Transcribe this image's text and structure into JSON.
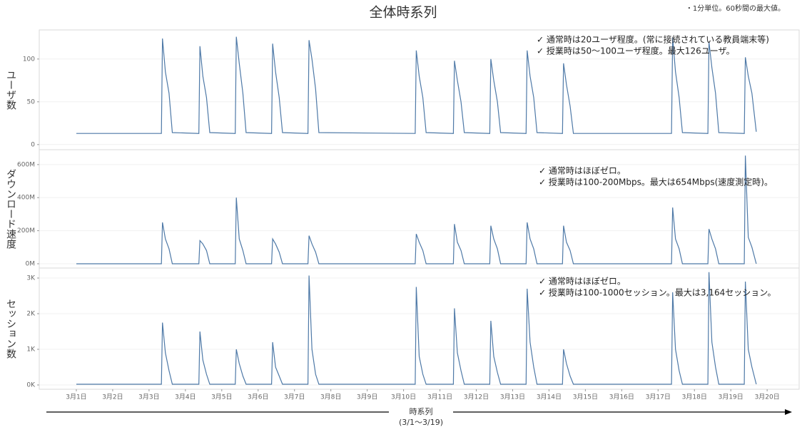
{
  "chart_data": [
    {
      "type": "line",
      "title": "全体時系列",
      "note": "・1分単位。60秒間の最大値。",
      "ylabel": "ユーザ数",
      "color": "#4e79a7",
      "annotations": [
        "✓ 通常時は20ユーザ程度。(常に接続されている教員端末等)",
        "✓ 授業時は50～100ユーザ程度。最大126ユーザ。"
      ],
      "xlim": [
        -0.02,
        20.88
      ],
      "ylim": [
        -6,
        134
      ],
      "yticks": [
        0,
        50,
        100
      ],
      "x": [
        1.0,
        3.34,
        3.37,
        3.45,
        3.55,
        3.64,
        4.37,
        4.4,
        4.48,
        4.58,
        4.67,
        5.37,
        5.4,
        5.48,
        5.58,
        5.67,
        6.37,
        6.4,
        6.48,
        6.58,
        6.67,
        7.37,
        7.4,
        7.48,
        7.58,
        7.67,
        10.32,
        10.35,
        10.43,
        10.53,
        10.62,
        11.37,
        11.4,
        11.48,
        11.58,
        11.67,
        12.37,
        12.4,
        12.48,
        12.58,
        12.67,
        13.37,
        13.4,
        13.48,
        13.58,
        13.67,
        14.37,
        14.4,
        14.48,
        14.58,
        14.67,
        17.37,
        17.4,
        17.48,
        17.58,
        17.67,
        18.37,
        18.4,
        18.48,
        18.58,
        18.67,
        19.37,
        19.4,
        19.48,
        19.58,
        19.7
      ],
      "values": [
        13,
        13,
        124,
        85,
        60,
        14,
        13,
        115,
        80,
        55,
        14,
        13,
        126,
        95,
        60,
        14,
        13,
        118,
        85,
        55,
        14,
        13,
        122,
        100,
        65,
        14,
        13,
        110,
        80,
        55,
        14,
        13,
        98,
        75,
        50,
        14,
        13,
        100,
        75,
        50,
        14,
        13,
        110,
        80,
        55,
        14,
        13,
        95,
        70,
        45,
        13,
        13,
        125,
        85,
        55,
        14,
        13,
        120,
        90,
        60,
        14,
        13,
        102,
        80,
        60,
        15
      ]
    },
    {
      "type": "line",
      "ylabel": "ダウンロード速度",
      "color": "#4e79a7",
      "annotations": [
        "✓ 通常時はほぼゼロ。",
        "✓ 授業時は100-200Mbps。最大は654Mbps(速度測定時)。"
      ],
      "xlim": [
        -0.02,
        20.88
      ],
      "ylim": [
        -26000000,
        690000000
      ],
      "yticks": [
        {
          "value": 0,
          "label": "0M"
        },
        {
          "value": 200000000,
          "label": "200M"
        },
        {
          "value": 400000000,
          "label": "400M"
        },
        {
          "value": 600000000,
          "label": "600M"
        }
      ],
      "x": [
        1.0,
        3.34,
        3.37,
        3.45,
        3.55,
        3.64,
        4.37,
        4.4,
        4.48,
        4.58,
        4.67,
        5.37,
        5.4,
        5.48,
        5.58,
        5.67,
        6.37,
        6.4,
        6.48,
        6.58,
        6.67,
        7.37,
        7.4,
        7.48,
        7.58,
        7.67,
        10.32,
        10.35,
        10.43,
        10.53,
        10.62,
        11.37,
        11.4,
        11.48,
        11.58,
        11.67,
        12.37,
        12.4,
        12.48,
        12.58,
        12.67,
        13.37,
        13.4,
        13.48,
        13.58,
        13.67,
        14.37,
        14.4,
        14.48,
        14.58,
        14.67,
        17.37,
        17.4,
        17.48,
        17.58,
        17.67,
        18.37,
        18.4,
        18.48,
        18.58,
        18.67,
        19.37,
        19.4,
        19.48,
        19.58,
        19.7
      ],
      "values": [
        0,
        0,
        250000000,
        150000000,
        90000000,
        0,
        0,
        140000000,
        120000000,
        80000000,
        0,
        0,
        400000000,
        150000000,
        80000000,
        0,
        0,
        150000000,
        120000000,
        70000000,
        0,
        0,
        170000000,
        120000000,
        70000000,
        0,
        0,
        180000000,
        130000000,
        80000000,
        0,
        0,
        240000000,
        130000000,
        80000000,
        0,
        0,
        230000000,
        150000000,
        90000000,
        0,
        0,
        250000000,
        150000000,
        90000000,
        0,
        0,
        230000000,
        130000000,
        80000000,
        0,
        0,
        340000000,
        150000000,
        90000000,
        0,
        0,
        210000000,
        150000000,
        90000000,
        0,
        0,
        654000000,
        160000000,
        100000000,
        0
      ]
    },
    {
      "type": "line",
      "ylabel": "セッション数",
      "color": "#4e79a7",
      "annotations": [
        "✓ 通常時はほぼゼロ。",
        "✓ 授業時は100-1000セッション。最大は3,164セッション。"
      ],
      "xlabel": "時系列",
      "xlabel_sub": "(3/1～3/19)",
      "xlim": [
        -0.02,
        20.88
      ],
      "ylim": [
        -120,
        3280
      ],
      "yticks": [
        {
          "value": 0,
          "label": "0K"
        },
        {
          "value": 1000,
          "label": "1K"
        },
        {
          "value": 2000,
          "label": "2K"
        },
        {
          "value": 3000,
          "label": "3K"
        }
      ],
      "xticks": [
        {
          "value": 1,
          "label": "3月1日"
        },
        {
          "value": 2,
          "label": "3月2日"
        },
        {
          "value": 3,
          "label": "3月3日"
        },
        {
          "value": 4,
          "label": "3月4日"
        },
        {
          "value": 5,
          "label": "3月5日"
        },
        {
          "value": 6,
          "label": "3月6日"
        },
        {
          "value": 7,
          "label": "3月7日"
        },
        {
          "value": 8,
          "label": "3月8日"
        },
        {
          "value": 9,
          "label": "3月9日"
        },
        {
          "value": 10,
          "label": "3月10日"
        },
        {
          "value": 11,
          "label": "3月11日"
        },
        {
          "value": 12,
          "label": "3月12日"
        },
        {
          "value": 13,
          "label": "3月13日"
        },
        {
          "value": 14,
          "label": "3月14日"
        },
        {
          "value": 15,
          "label": "3月15日"
        },
        {
          "value": 16,
          "label": "3月16日"
        },
        {
          "value": 17,
          "label": "3月17日"
        },
        {
          "value": 18,
          "label": "3月18日"
        },
        {
          "value": 19,
          "label": "3月19日"
        },
        {
          "value": 20,
          "label": "3月20日"
        }
      ],
      "x": [
        1.0,
        3.34,
        3.37,
        3.45,
        3.55,
        3.64,
        4.37,
        4.4,
        4.48,
        4.58,
        4.67,
        5.37,
        5.4,
        5.48,
        5.58,
        5.67,
        6.37,
        6.4,
        6.48,
        6.58,
        6.67,
        7.37,
        7.4,
        7.48,
        7.58,
        7.67,
        10.32,
        10.35,
        10.43,
        10.53,
        10.62,
        11.37,
        11.4,
        11.48,
        11.58,
        11.67,
        12.37,
        12.4,
        12.48,
        12.58,
        12.67,
        13.37,
        13.4,
        13.48,
        13.58,
        13.67,
        14.37,
        14.4,
        14.48,
        14.58,
        14.67,
        17.37,
        17.4,
        17.48,
        17.58,
        17.67,
        18.37,
        18.4,
        18.48,
        18.58,
        18.67,
        19.37,
        19.4,
        19.48,
        19.58,
        19.7
      ],
      "values": [
        20,
        20,
        1750,
        900,
        400,
        20,
        20,
        1500,
        700,
        300,
        20,
        20,
        1000,
        600,
        250,
        20,
        20,
        1200,
        500,
        250,
        20,
        20,
        3070,
        1000,
        300,
        20,
        20,
        2750,
        800,
        300,
        20,
        20,
        2150,
        900,
        400,
        20,
        20,
        1800,
        800,
        350,
        20,
        20,
        2700,
        1200,
        500,
        20,
        20,
        1000,
        600,
        250,
        20,
        20,
        2600,
        1000,
        400,
        20,
        20,
        3164,
        1200,
        500,
        20,
        20,
        2900,
        1000,
        500,
        20
      ]
    }
  ]
}
